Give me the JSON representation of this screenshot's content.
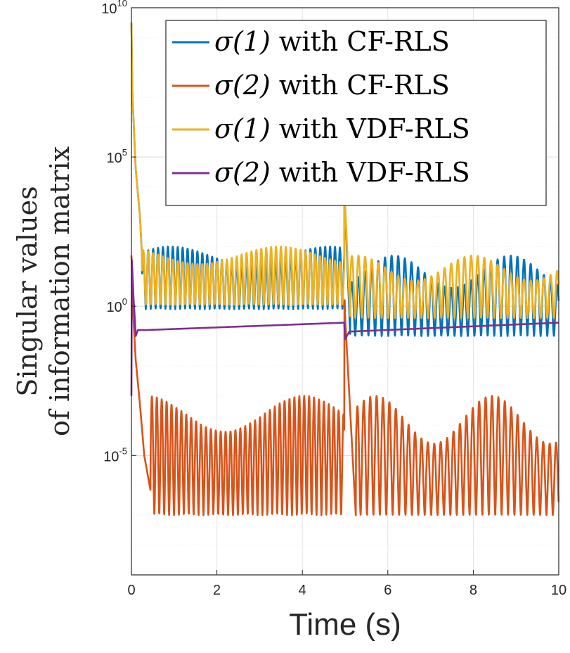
{
  "chart_data": {
    "type": "line",
    "xlabel": "Time (s)",
    "ylabel_lines": [
      "Singular values",
      "of information matrix"
    ],
    "xlim": [
      0,
      10
    ],
    "ylim_log10": [
      -9,
      10
    ],
    "yscale": "log",
    "grid": true,
    "legend_position": "top-right",
    "x_ticks": [
      {
        "value": 0,
        "label": "0"
      },
      {
        "value": 2,
        "label": "2"
      },
      {
        "value": 4,
        "label": "4"
      },
      {
        "value": 6,
        "label": "6"
      },
      {
        "value": 8,
        "label": "8"
      },
      {
        "value": 10,
        "label": "10"
      }
    ],
    "y_ticks": [
      {
        "exp": 10,
        "base": "10",
        "power": "10"
      },
      {
        "exp": 5,
        "base": "10",
        "power": "5"
      },
      {
        "exp": 0,
        "base": "10",
        "power": "0"
      },
      {
        "exp": -5,
        "base": "10",
        "power": "-5"
      }
    ],
    "series": [
      {
        "name_sym": "σ(1)",
        "name_rest": " with CF-RLS",
        "color": "#0072BD",
        "pattern": {
          "start": 9.5,
          "envelope": [
            [
              0,
              9.5
            ],
            [
              0.02,
              7.2
            ],
            [
              0.1,
              4.6
            ],
            [
              0.2,
              3.0
            ],
            [
              0.25,
              1.6
            ]
          ],
          "dip_after": 0.25,
          "low": -0.1,
          "high": 2.0,
          "period": 0.115,
          "spike_at": 4.98,
          "spike_peak": 4.1,
          "spike_end": 5.12,
          "low2": -1.0,
          "high2": 1.7,
          "period2": 0.155
        }
      },
      {
        "name_sym": "σ(2)",
        "name_rest": " with CF-RLS",
        "color": "#D95319",
        "pattern": {
          "start": 1.7,
          "envelope": [
            [
              0,
              1.7
            ],
            [
              0.05,
              -0.5
            ],
            [
              0.1,
              -1.8
            ],
            [
              0.2,
              -3.3
            ],
            [
              0.3,
              -5.0
            ],
            [
              0.45,
              -6.2
            ]
          ],
          "low": -7.0,
          "high": -3.0,
          "period": 0.115,
          "spike_at": 4.98,
          "spike_peak": 0.2,
          "spike_end": 5.25,
          "low2": -7.0,
          "high2": -3.0,
          "period2": 0.15
        }
      },
      {
        "name_sym": "σ(1)",
        "name_rest": " with VDF-RLS",
        "color": "#EDB120",
        "pattern": {
          "start": 9.5,
          "envelope": [
            [
              0,
              9.5
            ],
            [
              0.02,
              7.2
            ],
            [
              0.1,
              4.6
            ],
            [
              0.2,
              3.0
            ],
            [
              0.25,
              1.6
            ]
          ],
          "low": 0.05,
          "high": 2.0,
          "period": 0.115,
          "spike_at": 4.98,
          "spike_peak": 4.1,
          "spike_end": 5.12,
          "low2": -0.4,
          "high2": 1.7,
          "period2": 0.155
        }
      },
      {
        "name_sym": "σ(2)",
        "name_rest": " with VDF-RLS",
        "color": "#7E2F8E",
        "pattern": {
          "start": -3.0,
          "points": [
            [
              0,
              -3.0
            ],
            [
              0.005,
              1.7
            ],
            [
              0.05,
              0.3
            ],
            [
              0.1,
              -1.0
            ],
            [
              0.15,
              -0.8
            ],
            [
              0.3,
              -0.8
            ],
            [
              4.98,
              -0.55
            ],
            [
              5.0,
              -1.1
            ],
            [
              5.1,
              -0.85
            ],
            [
              10,
              -0.55
            ]
          ]
        }
      }
    ]
  }
}
